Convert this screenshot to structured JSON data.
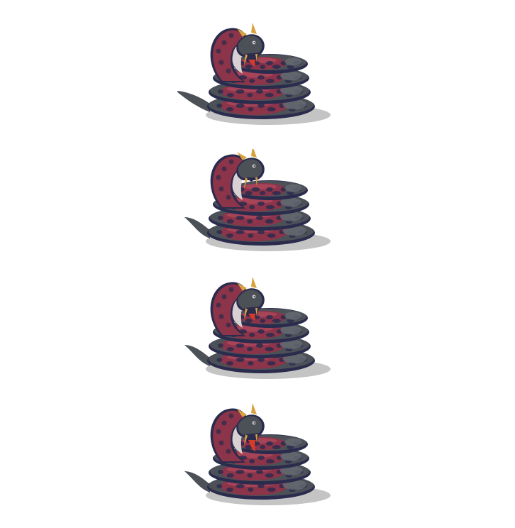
{
  "sprite_sheet": {
    "subject": "coiled-serpent-dragon",
    "frame_count": 4,
    "frames": [
      {
        "index": 1,
        "pose": "mouth-open-tongue"
      },
      {
        "index": 2,
        "pose": "head-raised"
      },
      {
        "index": 3,
        "pose": "mouth-open-tongue"
      },
      {
        "index": 4,
        "pose": "mouth-wide-tongue-out"
      }
    ],
    "colors": {
      "background": "#ffffff",
      "body_red": "#8c3449",
      "body_red_light": "#a84458",
      "spot_navy": "#2b2b4d",
      "scale_gray": "#4c5158",
      "scale_gray_light": "#666c73",
      "belly_pale": "#d8d0d2",
      "horn_gold": "#d9a23f",
      "tongue": "#d63a2a",
      "shadow": "#c4c4c4"
    }
  }
}
